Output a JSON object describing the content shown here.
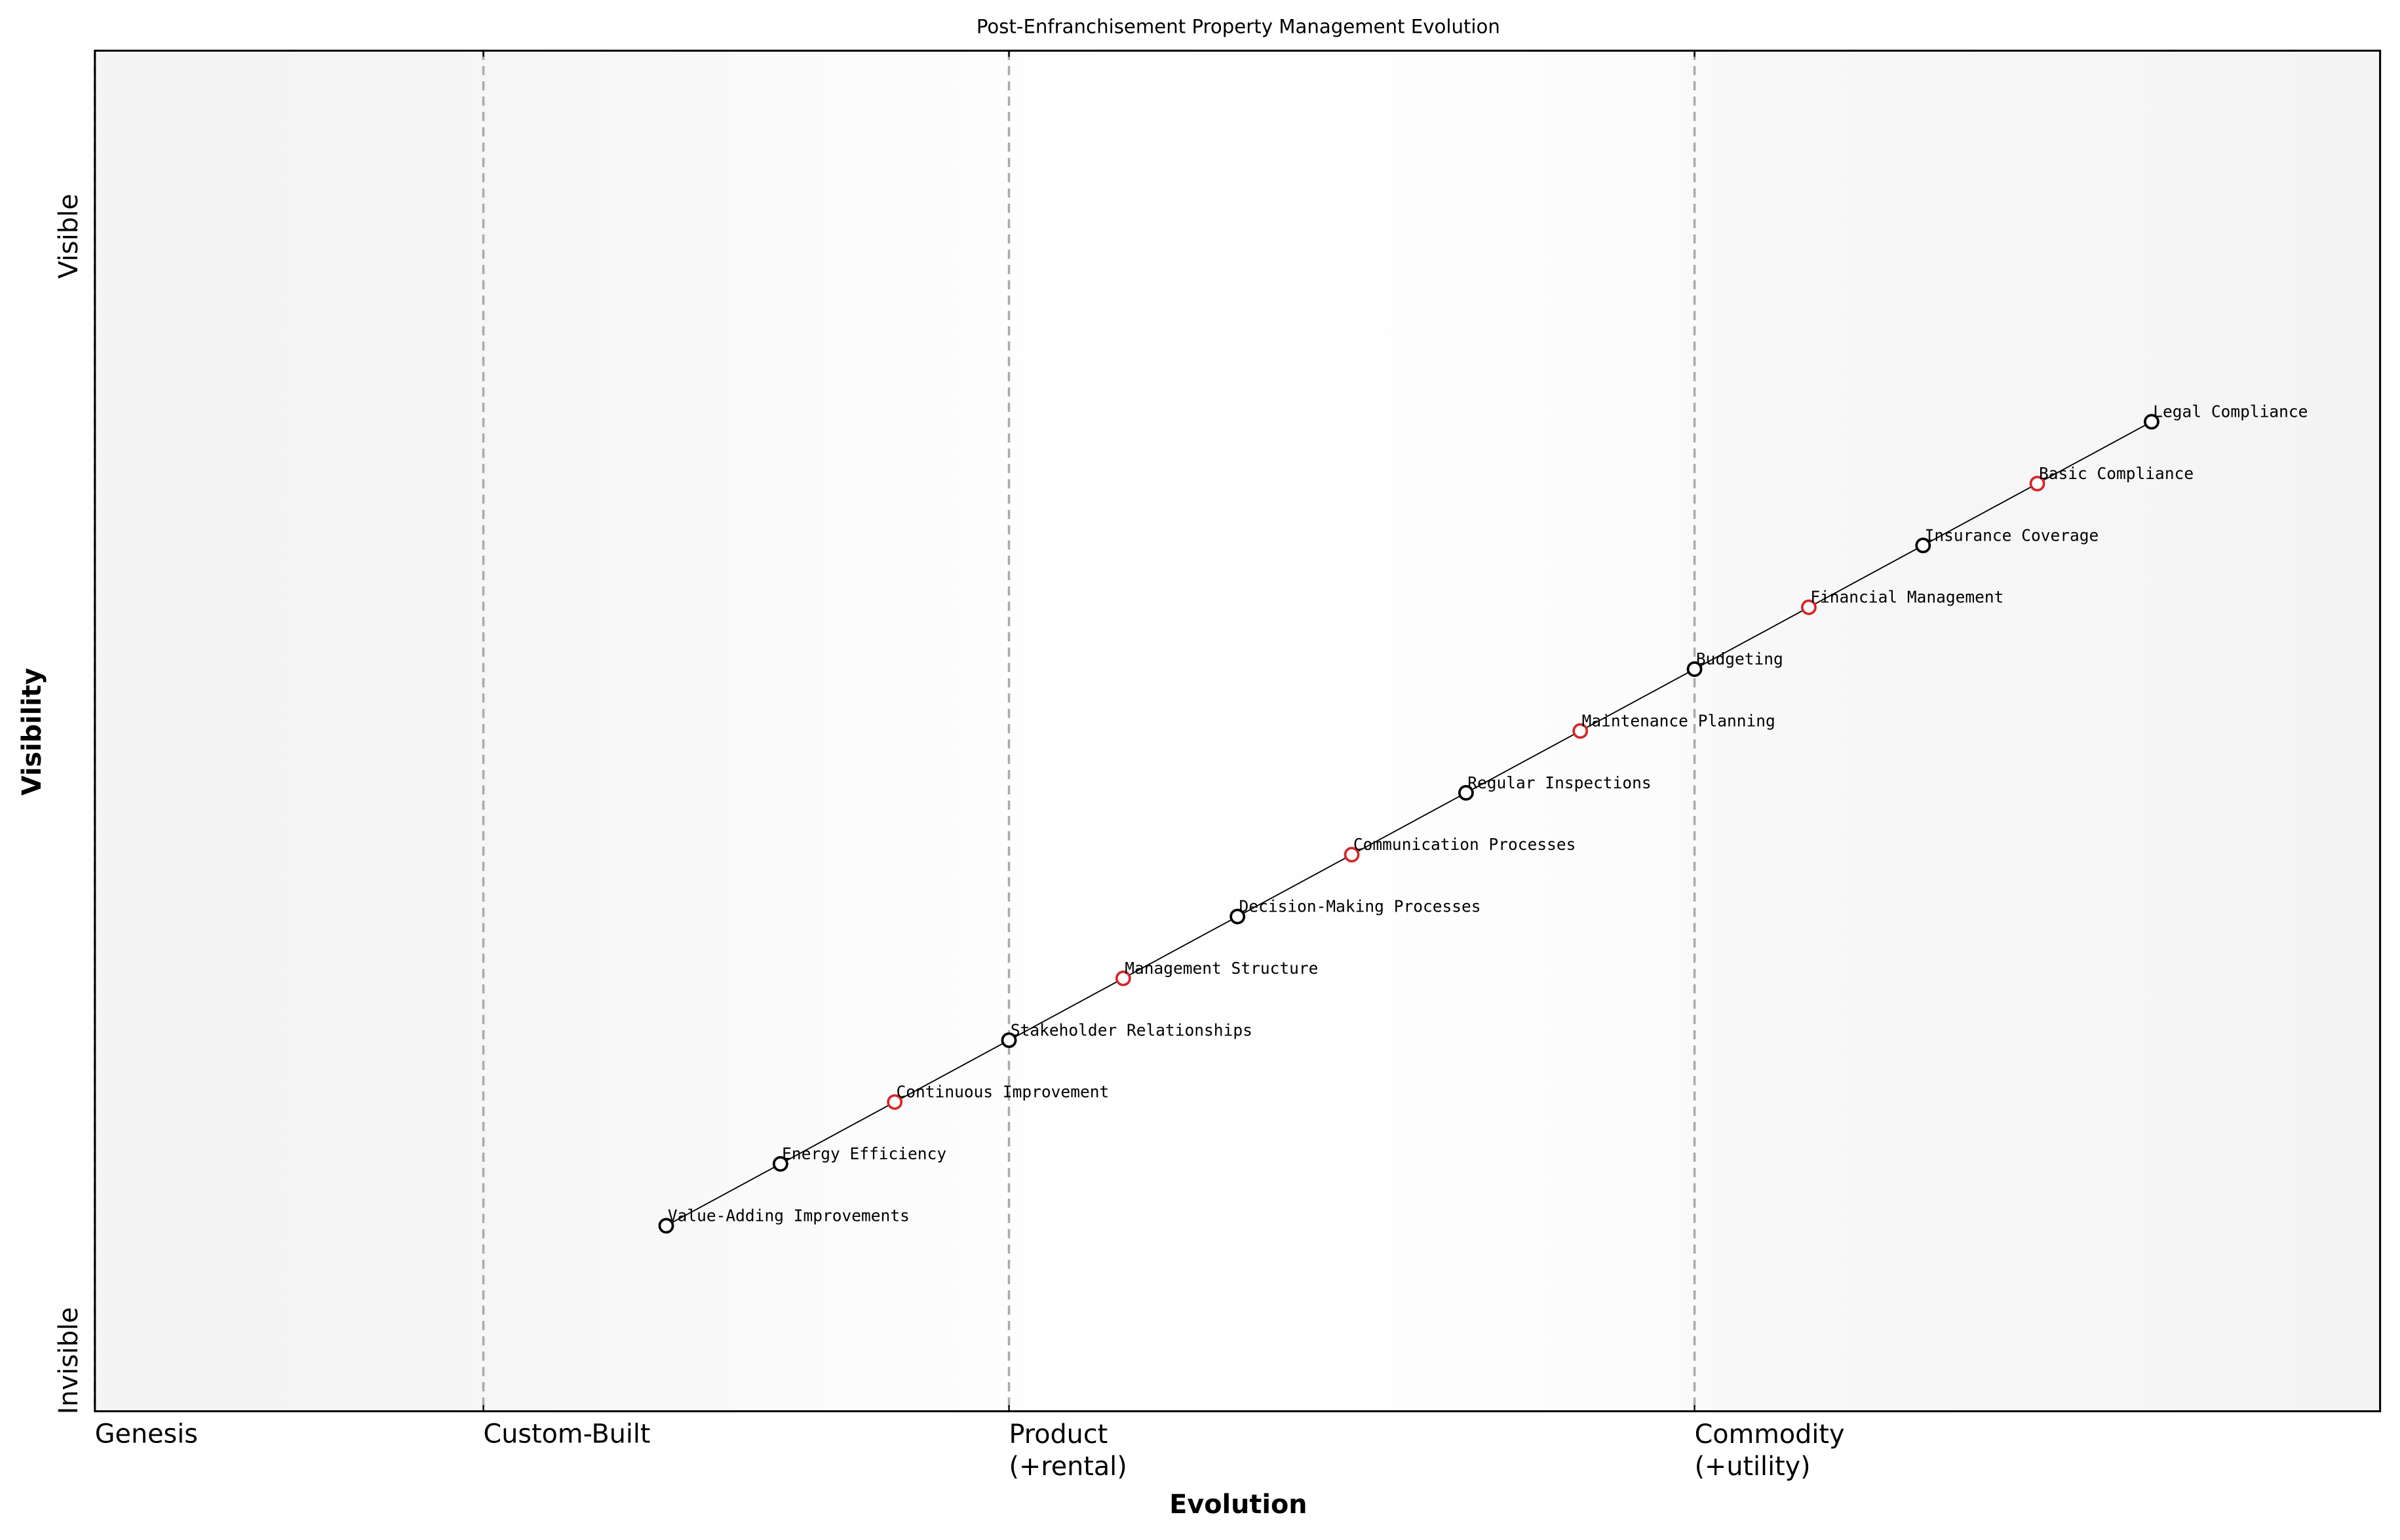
{
  "chart_data": {
    "type": "wardley",
    "title": "Post-Enfranchisement Property Management Evolution",
    "xlabel": "Evolution",
    "ylabel": "Visibility",
    "xlim": [
      0,
      1
    ],
    "ylim": [
      -0.05,
      1.05
    ],
    "xticks": [
      {
        "value": 0,
        "label": "Genesis"
      },
      {
        "value": 0.17,
        "label": "Custom-Built"
      },
      {
        "value": 0.4,
        "label": "Product\n(+rental)"
      },
      {
        "value": 0.7,
        "label": "Commodity\n(+utility)"
      }
    ],
    "yticks": [
      {
        "value": 0,
        "label": "Invisible"
      },
      {
        "value": 0.9,
        "label": "Visible"
      }
    ],
    "labels": [
      "Value-Adding Improvements",
      "Energy Efficiency",
      "Continuous Improvement",
      "Stakeholder Relationships",
      "Management Structure",
      "Decision-Making Processes",
      "Communication Processes",
      "Regular Inspections",
      "Maintenance Planning",
      "Budgeting",
      "Financial Management",
      "Insurance Coverage",
      "Basic Compliance",
      "Legal Compliance"
    ],
    "x": [
      0.25,
      0.3,
      0.35,
      0.4,
      0.45,
      0.5,
      0.55,
      0.6,
      0.65,
      0.7,
      0.75,
      0.8,
      0.85,
      0.9
    ],
    "values": [
      0.1,
      0.15,
      0.2,
      0.25,
      0.3,
      0.35,
      0.4,
      0.45,
      0.5,
      0.55,
      0.6,
      0.65,
      0.7,
      0.75
    ],
    "colors": [
      "#000000",
      "#000000",
      "#d62728",
      "#000000",
      "#d62728",
      "#000000",
      "#d62728",
      "#000000",
      "#d62728",
      "#000000",
      "#d62728",
      "#000000",
      "#d62728",
      "#000000"
    ],
    "line_color": "#000000"
  }
}
